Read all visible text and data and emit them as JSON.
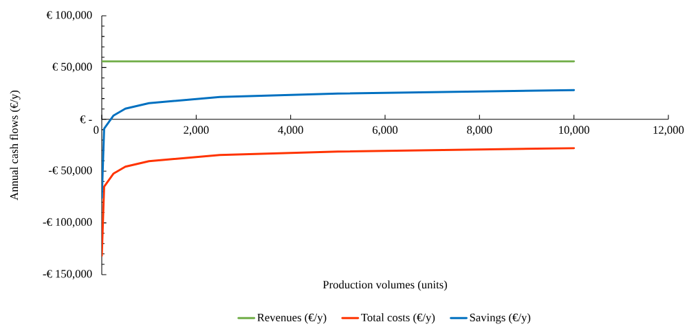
{
  "chart_data": {
    "type": "line",
    "xlabel": "Production volumes (units)",
    "ylabel": "Annual cash flows (€/y)",
    "xlim": [
      0,
      12000
    ],
    "ylim": [
      -150000,
      100000
    ],
    "xticks": [
      0,
      {
        "value": 2000,
        "label": "2,000"
      },
      {
        "value": 4000,
        "label": "4,000"
      },
      {
        "value": 6000,
        "label": "6,000"
      },
      {
        "value": 8000,
        "label": "8,000"
      },
      {
        "value": 10000,
        "label": "10,000"
      },
      {
        "value": 12000,
        "label": "12,000"
      }
    ],
    "yticks": [
      {
        "value": -150000,
        "label": "-€ 150,000"
      },
      {
        "value": -100000,
        "label": "-€ 100,000"
      },
      {
        "value": -50000,
        "label": "-€ 50,000"
      },
      {
        "value": 0,
        "label": "€ -"
      },
      {
        "value": 50000,
        "label": "€ 50,000"
      },
      {
        "value": 100000,
        "label": "€ 100,000"
      }
    ],
    "x": [
      1,
      50,
      250,
      500,
      1000,
      2500,
      5000,
      10000
    ],
    "series": [
      {
        "name": "Revenues (€/y)",
        "color": "#70ad47",
        "values": [
          56000,
          56000,
          56000,
          56000,
          56000,
          56000,
          56000,
          56000
        ]
      },
      {
        "name": "Total costs (€/y)",
        "color": "#ff3300",
        "values": [
          -131800,
          -65000,
          -52300,
          -45700,
          -40400,
          -34400,
          -31100,
          -27800
        ]
      },
      {
        "name": "Savings (€/y)",
        "color": "#0070c0",
        "values": [
          -75800,
          -9000,
          3700,
          10300,
          15600,
          21600,
          24900,
          28200
        ]
      }
    ],
    "legend": "bottom",
    "marker": "none",
    "line_style": "solid"
  }
}
